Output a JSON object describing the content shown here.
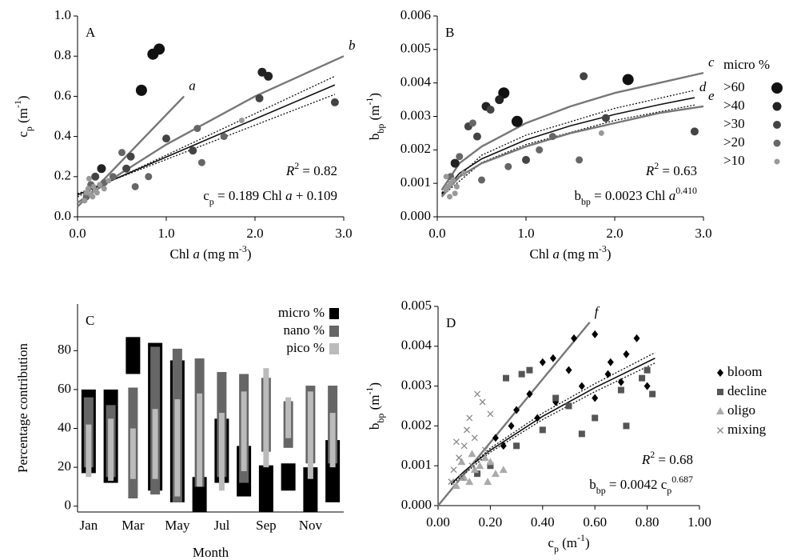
{
  "chart_data": [
    {
      "type": "scatter",
      "panel_label": "A",
      "x_label": [
        {
          "t": "Chl "
        },
        {
          "t": "a",
          "s": "italic"
        },
        {
          "t": " (mg m"
        },
        {
          "t": "-3",
          "s": "super"
        },
        {
          "t": ")"
        }
      ],
      "y_label": [
        {
          "t": "c"
        },
        {
          "t": "p",
          "s": "sub"
        },
        {
          "t": " (m"
        },
        {
          "t": "-1",
          "s": "super"
        },
        {
          "t": ")"
        }
      ],
      "xlim": [
        0,
        3
      ],
      "ylim": [
        0,
        1
      ],
      "xticks": [
        {
          "value": 0,
          "label": "0.0"
        },
        {
          "value": 1,
          "label": "1.0"
        },
        {
          "value": 2,
          "label": "2.0"
        },
        {
          "value": 3,
          "label": "3.0"
        }
      ],
      "yticks": [
        {
          "value": 0,
          "label": "0.0"
        },
        0.2,
        0.4,
        0.6,
        0.8,
        {
          "value": 1,
          "label": "1.0"
        }
      ],
      "series": [
        {
          "color": "#111",
          "size": 7,
          "x": [
            0.72,
            0.85,
            0.92
          ],
          "values": [
            0.63,
            0.81,
            0.835
          ]
        },
        {
          "color": "#222",
          "size": 5.5,
          "x": [
            2.08,
            2.15,
            0.27
          ],
          "values": [
            0.72,
            0.7,
            0.24
          ]
        },
        {
          "color": "#444",
          "size": 5,
          "x": [
            2.9,
            1.3,
            2.05,
            1.0,
            0.55,
            0.6,
            0.2
          ],
          "values": [
            0.57,
            0.33,
            0.59,
            0.39,
            0.24,
            0.3,
            0.2
          ]
        },
        {
          "color": "#666",
          "size": 4.5,
          "x": [
            1.4,
            1.65,
            1.35,
            0.5,
            0.4,
            0.15,
            0.1,
            0.3,
            0.65,
            0.8
          ],
          "values": [
            0.27,
            0.4,
            0.44,
            0.32,
            0.2,
            0.16,
            0.1,
            0.17,
            0.15,
            0.2
          ]
        },
        {
          "color": "#999",
          "size": 3.5,
          "x": [
            0.1,
            0.12,
            0.15,
            0.18,
            0.2,
            0.22,
            0.25,
            0.08,
            0.3,
            0.35,
            0.13,
            0.17,
            1.85
          ],
          "values": [
            0.12,
            0.14,
            0.11,
            0.15,
            0.13,
            0.12,
            0.16,
            0.08,
            0.14,
            0.18,
            0.19,
            0.1,
            0.48
          ]
        }
      ],
      "lines": [
        {
          "label": "a",
          "color": "#777",
          "style": "solid",
          "x": [
            0,
            1.2
          ],
          "values": [
            0.05,
            0.6
          ]
        },
        {
          "label": "b",
          "color": "#777",
          "style": "solid",
          "x": [
            0,
            0.5,
            1,
            1.5,
            2,
            2.5,
            3
          ],
          "values": [
            0.07,
            0.22,
            0.36,
            0.48,
            0.6,
            0.7,
            0.8
          ]
        },
        {
          "color": "#111",
          "style": "solid",
          "x": [
            0,
            2.9
          ],
          "values": [
            0.109,
            0.657
          ]
        },
        {
          "color": "#111",
          "style": "dotted",
          "x": [
            0,
            2.9
          ],
          "values": [
            0.1,
            0.7
          ]
        },
        {
          "color": "#111",
          "style": "dotted",
          "x": [
            0,
            2.9
          ],
          "values": [
            0.115,
            0.61
          ]
        }
      ],
      "annotations": [
        [
          {
            "t": "R",
            "s": "italic"
          },
          {
            "t": "2",
            "s": "super"
          },
          {
            "t": " = 0.82"
          }
        ],
        [
          {
            "t": "c"
          },
          {
            "t": "p",
            "s": "sub"
          },
          {
            "t": " = 0.189 Chl "
          },
          {
            "t": "a",
            "s": "italic"
          },
          {
            "t": " + 0.109"
          }
        ]
      ]
    },
    {
      "type": "scatter",
      "panel_label": "B",
      "x_label": [
        {
          "t": "Chl "
        },
        {
          "t": "a",
          "s": "italic"
        },
        {
          "t": " (mg m"
        },
        {
          "t": "-3",
          "s": "super"
        },
        {
          "t": ")"
        }
      ],
      "y_label": [
        {
          "t": "b"
        },
        {
          "t": "bp",
          "s": "sub"
        },
        {
          "t": " (m"
        },
        {
          "t": "-1",
          "s": "super"
        },
        {
          "t": ")"
        }
      ],
      "xlim": [
        0,
        3
      ],
      "ylim": [
        0,
        0.006
      ],
      "xticks": [
        {
          "value": 0,
          "label": "0.0"
        },
        {
          "value": 1,
          "label": "1.0"
        },
        {
          "value": 2,
          "label": "2.0"
        },
        {
          "value": 3,
          "label": "3.0"
        }
      ],
      "yticks": [
        {
          "value": 0,
          "label": "0.000"
        },
        0.001,
        0.002,
        0.003,
        0.004,
        0.005,
        0.006
      ],
      "legend": "right",
      "legend_title": "micro %",
      "series": [
        {
          "name": ">60",
          "color": "#111",
          "size": 7,
          "x": [
            0.75,
            0.9,
            2.15
          ],
          "values": [
            0.0037,
            0.00285,
            0.0041
          ]
        },
        {
          "name": ">40",
          "color": "#222",
          "size": 5.5,
          "x": [
            0.55,
            0.7,
            0.2
          ],
          "values": [
            0.0033,
            0.0035,
            0.0016
          ]
        },
        {
          "name": ">30",
          "color": "#444",
          "size": 5,
          "x": [
            1.65,
            2.9,
            1.9,
            0.35,
            0.45,
            0.6,
            1.0
          ],
          "values": [
            0.0042,
            0.00255,
            0.00295,
            0.0027,
            0.0024,
            0.0032,
            0.0017
          ]
        },
        {
          "name": ">20",
          "color": "#666",
          "size": 4.5,
          "x": [
            1.3,
            1.6,
            0.25,
            0.15,
            0.4,
            0.8,
            1.15,
            0.5
          ],
          "values": [
            0.0024,
            0.0017,
            0.0018,
            0.0012,
            0.0028,
            0.0015,
            0.002,
            0.0011
          ]
        },
        {
          "name": ">10",
          "color": "#999",
          "size": 3.5,
          "x": [
            0.1,
            0.12,
            0.15,
            0.18,
            0.2,
            0.22,
            0.1,
            0.14,
            1.85,
            0.3
          ],
          "values": [
            0.0008,
            0.0009,
            0.001,
            0.0011,
            0.0007,
            0.0009,
            0.0012,
            0.0006,
            0.0025,
            0.0013
          ]
        }
      ],
      "lines": [
        {
          "label": "c",
          "color": "#777",
          "style": "solid",
          "x": [
            0.05,
            0.25,
            0.5,
            1,
            1.5,
            2,
            2.5,
            3
          ],
          "values": [
            0.0008,
            0.0016,
            0.0021,
            0.0028,
            0.0033,
            0.0037,
            0.004,
            0.0043
          ]
        },
        {
          "label": "d",
          "color": "#111",
          "style": "solid",
          "x": [
            0.05,
            0.25,
            0.5,
            1,
            1.5,
            2,
            2.5,
            2.9
          ],
          "values": [
            0.00067,
            0.0013,
            0.00173,
            0.0023,
            0.00272,
            0.00306,
            0.00335,
            0.00356
          ]
        },
        {
          "color": "#111",
          "style": "dotted",
          "x": [
            0.05,
            0.5,
            1,
            2,
            2.9
          ],
          "values": [
            0.00072,
            0.00184,
            0.00244,
            0.00324,
            0.00378
          ]
        },
        {
          "color": "#111",
          "style": "dotted",
          "x": [
            0.05,
            0.5,
            1,
            2,
            2.9
          ],
          "values": [
            0.00062,
            0.00162,
            0.00216,
            0.00288,
            0.00334
          ]
        },
        {
          "label": "e",
          "color": "#777",
          "style": "solid",
          "x": [
            0.05,
            0.25,
            0.5,
            1,
            1.5,
            2,
            2.5,
            3
          ],
          "values": [
            0.0006,
            0.0012,
            0.0016,
            0.0021,
            0.0025,
            0.0028,
            0.0031,
            0.0033
          ]
        }
      ],
      "annotations": [
        [
          {
            "t": "R",
            "s": "italic"
          },
          {
            "t": "2",
            "s": "super"
          },
          {
            "t": " = 0.63"
          }
        ],
        [
          {
            "t": "b"
          },
          {
            "t": "bp",
            "s": "sub"
          },
          {
            "t": " = 0.0023 Chl "
          },
          {
            "t": "a",
            "s": "italic"
          },
          {
            "t": "0.410",
            "s": "super"
          }
        ]
      ]
    },
    {
      "type": "range",
      "panel_label": "C",
      "x_label": "Month",
      "y_label": "Percentage contribution",
      "categories": [
        "Jan",
        null,
        "Mar",
        null,
        "May",
        null,
        "Jul",
        null,
        "Sep",
        null,
        "Nov",
        null
      ],
      "ylim": [
        -3,
        104
      ],
      "yticks": [
        0,
        20,
        40,
        60,
        80
      ],
      "legend": "upper right",
      "series": [
        {
          "name": "micro %",
          "color": "#000",
          "low": [
            17,
            12,
            68,
            8,
            2,
            -3,
            12,
            5,
            -3,
            8,
            -3,
            2
          ],
          "high": [
            60,
            60,
            87,
            84,
            75,
            15,
            45,
            31,
            21,
            22,
            20,
            34
          ]
        },
        {
          "name": "nano %",
          "color": "#666",
          "low": [
            20,
            15,
            4,
            6,
            2,
            10,
            15,
            12,
            28,
            30,
            22,
            22
          ],
          "high": [
            56,
            52,
            61,
            82,
            81,
            76,
            69,
            68,
            66,
            54,
            62,
            62
          ]
        },
        {
          "name": "pico %",
          "color": "#bbb",
          "low": [
            15,
            13,
            14,
            14,
            5,
            10,
            8,
            18,
            20,
            35,
            14,
            20
          ],
          "high": [
            42,
            45,
            40,
            50,
            55,
            58,
            48,
            59,
            71,
            56,
            59,
            48
          ]
        }
      ]
    },
    {
      "type": "scatter",
      "panel_label": "D",
      "x_label": [
        {
          "t": "c"
        },
        {
          "t": "p",
          "s": "sub"
        },
        {
          "t": " (m"
        },
        {
          "t": "-1",
          "s": "super"
        },
        {
          "t": ")"
        }
      ],
      "y_label": [
        {
          "t": "b"
        },
        {
          "t": "bp",
          "s": "sub"
        },
        {
          "t": " (m"
        },
        {
          "t": "-1",
          "s": "super"
        },
        {
          "t": ")"
        }
      ],
      "xlim": [
        0,
        1
      ],
      "ylim": [
        0,
        0.005
      ],
      "xticks": [
        {
          "value": 0,
          "label": "0.00"
        },
        {
          "value": 0.2,
          "label": "0.20"
        },
        {
          "value": 0.4,
          "label": "0.40"
        },
        {
          "value": 0.6,
          "label": "0.60"
        },
        {
          "value": 0.8,
          "label": "0.80"
        },
        {
          "value": 1,
          "label": "1.00"
        }
      ],
      "yticks": [
        {
          "value": 0,
          "label": "0.000"
        },
        0.001,
        0.002,
        0.003,
        0.004,
        0.005
      ],
      "legend": "right",
      "series": [
        {
          "name": "bloom",
          "color": "#000",
          "marker": "diamond",
          "x": [
            0.6,
            0.52,
            0.76,
            0.44,
            0.4,
            0.66,
            0.5,
            0.55,
            0.7,
            0.35,
            0.3,
            0.28,
            0.45,
            0.6,
            0.8,
            0.25,
            0.22,
            0.65,
            0.38,
            0.72
          ],
          "values": [
            0.0043,
            0.0042,
            0.0042,
            0.0037,
            0.0036,
            0.0036,
            0.0034,
            0.003,
            0.0031,
            0.0028,
            0.0024,
            0.002,
            0.0026,
            0.0027,
            0.003,
            0.0015,
            0.0017,
            0.0033,
            0.0022,
            0.0038
          ]
        },
        {
          "name": "decline",
          "color": "#555",
          "marker": "square",
          "x": [
            0.35,
            0.32,
            0.26,
            0.5,
            0.6,
            0.72,
            0.82,
            0.8,
            0.45,
            0.4,
            0.3,
            0.2,
            0.15,
            0.7,
            0.55,
            0.78
          ],
          "values": [
            0.0034,
            0.0033,
            0.0032,
            0.0025,
            0.0022,
            0.002,
            0.0028,
            0.0034,
            0.0027,
            0.0019,
            0.0015,
            0.001,
            0.0008,
            0.0029,
            0.0018,
            0.0032
          ]
        },
        {
          "name": "oligo",
          "color": "#aaa",
          "marker": "triangle",
          "x": [
            0.07,
            0.1,
            0.12,
            0.14,
            0.16,
            0.18,
            0.2,
            0.22,
            0.25,
            0.09,
            0.13,
            0.19
          ],
          "values": [
            0.0005,
            0.0007,
            0.0006,
            0.0009,
            0.001,
            0.0012,
            0.0011,
            0.0008,
            0.0009,
            0.0011,
            0.0013,
            0.0006
          ]
        },
        {
          "name": "mixing",
          "color": "#888",
          "marker": "x",
          "x": [
            0.15,
            0.17,
            0.12,
            0.08,
            0.1,
            0.06,
            0.11,
            0.14,
            0.2,
            0.09,
            0.05,
            0.13,
            0.18,
            0.07
          ],
          "values": [
            0.0028,
            0.0026,
            0.0022,
            0.0012,
            0.0015,
            0.0009,
            0.0019,
            0.0017,
            0.0023,
            0.0007,
            0.0006,
            0.001,
            0.0014,
            0.0016
          ]
        }
      ],
      "lines": [
        {
          "label": "f",
          "color": "#777",
          "style": "solid",
          "x": [
            0,
            0.58
          ],
          "values": [
            0,
            0.0046
          ]
        },
        {
          "color": "#111",
          "style": "solid",
          "x": [
            0.05,
            0.1,
            0.2,
            0.4,
            0.6,
            0.83
          ],
          "values": [
            0.00054,
            0.00086,
            0.00139,
            0.00224,
            0.00296,
            0.0037
          ]
        },
        {
          "color": "#111",
          "style": "dotted",
          "x": [
            0.05,
            0.2,
            0.4,
            0.6,
            0.83
          ],
          "values": [
            0.00056,
            0.00144,
            0.00232,
            0.00306,
            0.00384
          ]
        },
        {
          "color": "#111",
          "style": "dotted",
          "x": [
            0.05,
            0.2,
            0.4,
            0.6,
            0.83
          ],
          "values": [
            0.00052,
            0.00134,
            0.00216,
            0.00286,
            0.00358
          ]
        }
      ],
      "annotations": [
        [
          {
            "t": "R",
            "s": "italic"
          },
          {
            "t": "2",
            "s": "super"
          },
          {
            "t": " = 0.68"
          }
        ],
        [
          {
            "t": "b"
          },
          {
            "t": "bp",
            "s": "sub"
          },
          {
            "t": " = 0.0042 c"
          },
          {
            "t": "p",
            "s": "sub"
          },
          {
            "t": "0.687",
            "s": "super"
          }
        ]
      ]
    }
  ]
}
